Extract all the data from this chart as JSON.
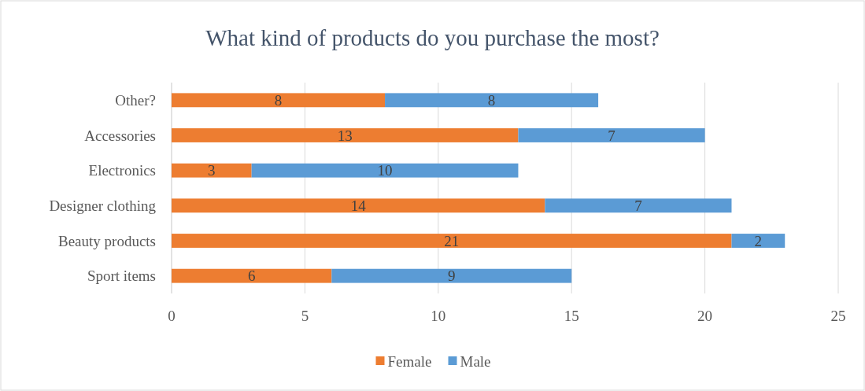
{
  "chart_data": {
    "type": "bar",
    "title": "What kind of products do you purchase the most?",
    "orientation": "horizontal",
    "stacked": true,
    "categories": [
      "Other?",
      "Accessories",
      "Electronics",
      "Designer clothing",
      "Beauty products",
      "Sport items"
    ],
    "series": [
      {
        "name": "Female",
        "color": "#ed7d31",
        "values": [
          8,
          13,
          3,
          14,
          21,
          6
        ]
      },
      {
        "name": "Male",
        "color": "#5b9bd5",
        "values": [
          8,
          7,
          10,
          7,
          2,
          9
        ]
      }
    ],
    "xlim": [
      0,
      25
    ],
    "xticks": [
      0,
      5,
      10,
      15,
      20,
      25
    ],
    "grid": "x",
    "legend": "bottom",
    "data_labels": true
  }
}
